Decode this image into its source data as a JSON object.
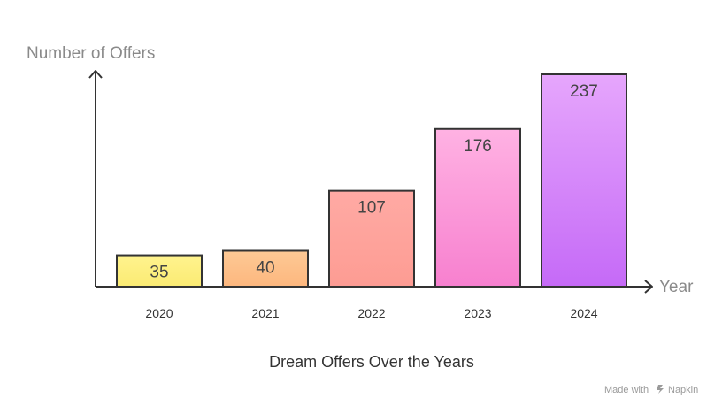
{
  "chart_data": {
    "type": "bar",
    "title": "Dream Offers Over the Years",
    "xlabel": "Year",
    "ylabel": "Number of Offers",
    "categories": [
      "2020",
      "2021",
      "2022",
      "2023",
      "2024"
    ],
    "values": [
      35,
      40,
      107,
      176,
      237
    ],
    "ylim": [
      0,
      237
    ],
    "bar_gradients": [
      [
        "#fff38e",
        "#fbeb73"
      ],
      [
        "#fdc995",
        "#fdb77e"
      ],
      [
        "#ffaaa4",
        "#fd9c93"
      ],
      [
        "#ffb2e3",
        "#f780cf"
      ],
      [
        "#e6a6fc",
        "#c56af7"
      ]
    ],
    "stroke_color": "#333333",
    "grid": false
  },
  "footer": {
    "credit": "Made with",
    "brand": "Napkin",
    "brand_icon": "napkin-logo-icon"
  }
}
